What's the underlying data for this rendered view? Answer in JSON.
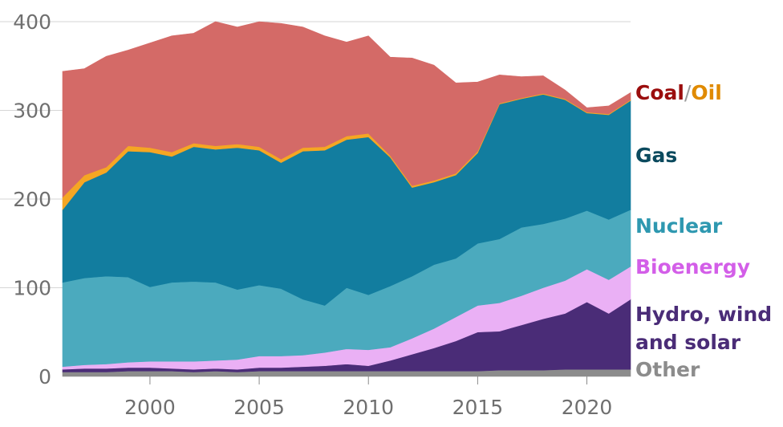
{
  "chart_data": {
    "type": "area",
    "stacked": true,
    "title": "",
    "xlabel": "",
    "ylabel": "",
    "x": [
      1996,
      1997,
      1998,
      1999,
      2000,
      2001,
      2002,
      2003,
      2004,
      2005,
      2006,
      2007,
      2008,
      2009,
      2010,
      2011,
      2012,
      2013,
      2014,
      2015,
      2016,
      2017,
      2018,
      2019,
      2020,
      2021,
      2022
    ],
    "xlim": [
      1996,
      2022
    ],
    "ylim": [
      0,
      400
    ],
    "x_ticks": [
      "2000",
      "2005",
      "2010",
      "2015",
      "2020"
    ],
    "y_ticks": [
      "0",
      "100",
      "200",
      "300",
      "400"
    ],
    "grid": "horizontal",
    "legend": "right, labels aligned to series",
    "series": [
      {
        "name": "Other",
        "color": "#8c8c8c",
        "values": [
          5,
          5,
          5,
          6,
          6,
          6,
          5,
          6,
          5,
          6,
          6,
          6,
          6,
          6,
          6,
          6,
          6,
          6,
          6,
          6,
          7,
          7,
          7,
          8,
          8,
          8,
          8
        ]
      },
      {
        "name": "Hydro, wind and solar",
        "color": "#4a2c77",
        "values": [
          3,
          4,
          4,
          4,
          4,
          3,
          3,
          3,
          3,
          4,
          4,
          5,
          6,
          8,
          6,
          12,
          19,
          26,
          34,
          44,
          44,
          51,
          58,
          63,
          76,
          63,
          79
        ]
      },
      {
        "name": "Bioenergy",
        "color": "#eab0f5",
        "values": [
          3,
          4,
          5,
          6,
          7,
          8,
          9,
          9,
          11,
          13,
          13,
          13,
          15,
          17,
          18,
          15,
          18,
          22,
          27,
          30,
          32,
          33,
          35,
          37,
          37,
          38,
          37
        ]
      },
      {
        "name": "Nuclear",
        "color": "#4baabe",
        "values": [
          95,
          98,
          99,
          96,
          84,
          89,
          90,
          88,
          79,
          80,
          76,
          63,
          53,
          69,
          62,
          69,
          70,
          72,
          66,
          70,
          72,
          77,
          72,
          70,
          66,
          68,
          64
        ]
      },
      {
        "name": "Gas",
        "color": "#127d9f",
        "values": [
          82,
          108,
          117,
          142,
          152,
          142,
          152,
          150,
          160,
          152,
          142,
          167,
          175,
          167,
          178,
          145,
          100,
          93,
          94,
          102,
          152,
          145,
          146,
          134,
          110,
          118,
          123
        ]
      },
      {
        "name": "Oil",
        "color": "#f5a623",
        "values": [
          14,
          8,
          6,
          6,
          5,
          5,
          4,
          4,
          4,
          4,
          4,
          4,
          4,
          4,
          4,
          2,
          2,
          2,
          2,
          2,
          1,
          1,
          1,
          1,
          1,
          1,
          1
        ]
      },
      {
        "name": "Coal",
        "color": "#d46a67",
        "values": [
          142,
          120,
          125,
          108,
          118,
          131,
          124,
          140,
          132,
          141,
          153,
          136,
          125,
          106,
          110,
          111,
          144,
          130,
          102,
          78,
          32,
          24,
          20,
          10,
          5,
          9,
          8
        ]
      }
    ],
    "labels": {
      "other": "Other",
      "hydro_line1": "Hydro, wind",
      "hydro_line2": "and solar",
      "bioenergy": "Bioenergy",
      "nuclear": "Nuclear",
      "gas": "Gas",
      "coal": "Coal",
      "slash": "/",
      "oil": "Oil"
    },
    "label_colors": {
      "other": "#8c8c8c",
      "hydro": "#4a2c77",
      "bioenergy": "#d35ee8",
      "nuclear": "#2e98b0",
      "gas": "#0b4a5e",
      "coal": "#9b0d0d",
      "slash": "#9a9a9a",
      "oil": "#e08a00"
    }
  }
}
